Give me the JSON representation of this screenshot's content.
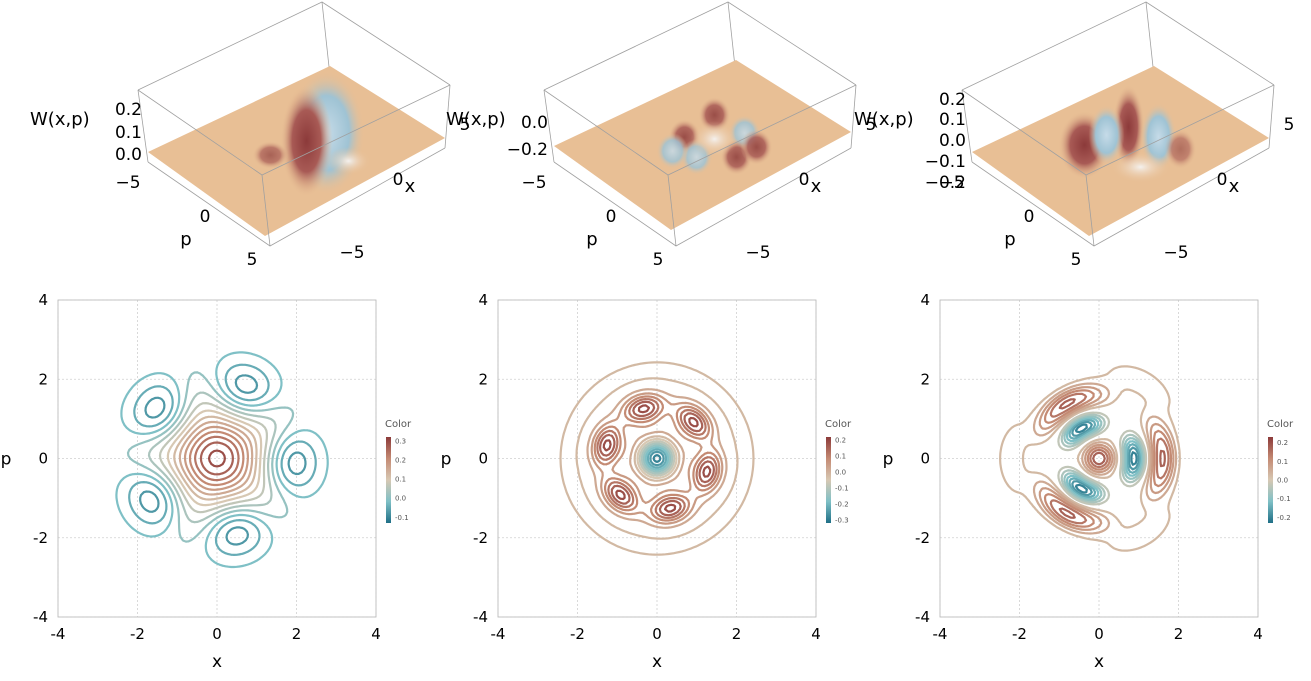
{
  "colors": {
    "low": "#1f6f86",
    "lowmid": "#7fc0c6",
    "mid": "#d7c8b3",
    "highmid": "#c48a73",
    "high": "#8c3a3a",
    "surface_base": "#e8bf95"
  },
  "chart_data": [
    {
      "type": "surface",
      "zlabel": "W(x,p)",
      "xlabel": "x",
      "ylabel": "p",
      "ztick_labels": [
        "0.2",
        "0.1",
        "0.0"
      ],
      "xtick_labels": [
        "5",
        "0",
        "−5"
      ],
      "ytick_labels": [
        "−5",
        "0",
        "5"
      ],
      "xlim": [
        -5,
        5
      ],
      "ylim": [
        -5,
        5
      ],
      "zlim": [
        -0.1,
        0.3
      ]
    },
    {
      "type": "surface",
      "zlabel": "W(x,p)",
      "xlabel": "x",
      "ylabel": "p",
      "ztick_labels": [
        "0.0",
        "−0.2"
      ],
      "xtick_labels": [
        "5",
        "0",
        "−5"
      ],
      "ytick_labels": [
        "−5",
        "0",
        "5"
      ],
      "xlim": [
        -5,
        5
      ],
      "ylim": [
        -5,
        5
      ],
      "zlim": [
        -0.3,
        0.2
      ]
    },
    {
      "type": "surface",
      "zlabel": "W(x,p)",
      "xlabel": "x",
      "ylabel": "p",
      "ztick_labels": [
        "0.2",
        "0.1",
        "0.0",
        "−0.1",
        "−0.2"
      ],
      "xtick_labels": [
        "5",
        "0",
        "−5"
      ],
      "ytick_labels": [
        "−5",
        "0",
        "5"
      ],
      "xlim": [
        -5,
        5
      ],
      "ylim": [
        -5,
        5
      ],
      "zlim": [
        -0.25,
        0.25
      ]
    },
    {
      "type": "contour",
      "xlabel": "x",
      "ylabel": "p",
      "xlim": [
        -4,
        4
      ],
      "ylim": [
        -4,
        4
      ],
      "xticks": [
        "-4",
        "-2",
        "0",
        "2",
        "4"
      ],
      "yticks": [
        "-4",
        "-2",
        "0",
        "2",
        "4"
      ],
      "grid": true,
      "legend": {
        "title": "Color",
        "placement": "right",
        "ticks": [
          "0.3",
          "0.2",
          "0.1",
          "0.0",
          "-0.1"
        ],
        "range": [
          -0.13,
          0.32
        ]
      }
    },
    {
      "type": "contour",
      "xlabel": "x",
      "ylabel": "p",
      "xlim": [
        -4,
        4
      ],
      "ylim": [
        -4,
        4
      ],
      "xticks": [
        "-4",
        "-2",
        "0",
        "2",
        "4"
      ],
      "yticks": [
        "-4",
        "-2",
        "0",
        "2",
        "4"
      ],
      "grid": true,
      "legend": {
        "title": "Color",
        "placement": "right",
        "ticks": [
          "0.2",
          "0.1",
          "0.0",
          "-0.1",
          "-0.2",
          "-0.3"
        ],
        "range": [
          -0.32,
          0.22
        ]
      }
    },
    {
      "type": "contour",
      "xlabel": "x",
      "ylabel": "p",
      "xlim": [
        -4,
        4
      ],
      "ylim": [
        -4,
        4
      ],
      "xticks": [
        "-4",
        "-2",
        "0",
        "2",
        "4"
      ],
      "yticks": [
        "-4",
        "-2",
        "0",
        "2",
        "4"
      ],
      "grid": true,
      "legend": {
        "title": "Color",
        "placement": "right",
        "ticks": [
          "0.2",
          "0.1",
          "0.0",
          "-0.1",
          "-0.2"
        ],
        "range": [
          -0.23,
          0.23
        ]
      }
    }
  ]
}
